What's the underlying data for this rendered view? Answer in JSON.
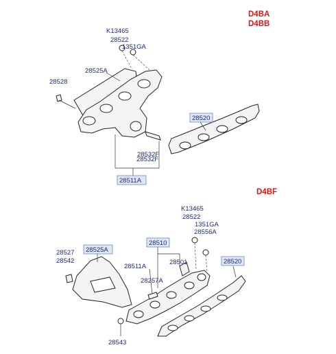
{
  "engine_codes": {
    "top": [
      "D4BA",
      "D4BB"
    ],
    "bottom": "D4BF"
  },
  "top_diagram": {
    "labels": {
      "k13465": "K13465",
      "p28522": "28522",
      "p1351ga": "1351GA",
      "p28525a": "28525A",
      "p28528": "28528",
      "p28520": "28520",
      "p28532f_upper": "28532F",
      "p28532f": "28532F",
      "p28511a": "28511A"
    }
  },
  "bottom_diagram": {
    "labels": {
      "k13465": "K13465",
      "p28522": "28522",
      "p1351ga": "1351GA",
      "p28556a": "28556A",
      "p28510": "28510",
      "p28525a": "28525A",
      "p28520": "28520",
      "p28527": "28527",
      "p28542": "28542",
      "p28511a": "28511A",
      "p28501": "28501",
      "p28257a": "28257A",
      "p28543": "28543"
    }
  }
}
